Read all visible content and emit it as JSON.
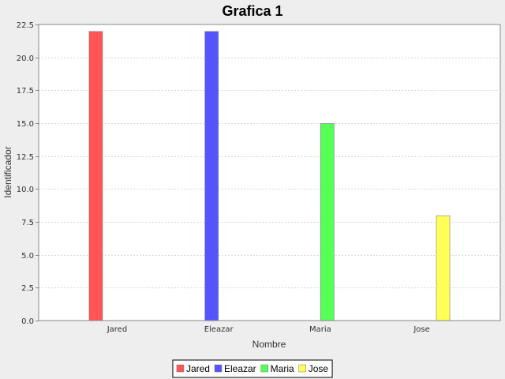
{
  "chart_data": {
    "type": "bar",
    "title": "Grafica 1",
    "xlabel": "Nombre",
    "ylabel": "Identificador",
    "categories": [
      "Jared",
      "Eleazar",
      "Maria",
      "Jose"
    ],
    "series": [
      {
        "name": "Jared",
        "values": [
          22,
          null,
          null,
          null
        ],
        "color": "#ff5555"
      },
      {
        "name": "Eleazar",
        "values": [
          null,
          22,
          null,
          null
        ],
        "color": "#5555ff"
      },
      {
        "name": "Maria",
        "values": [
          null,
          null,
          15,
          null
        ],
        "color": "#55ff55"
      },
      {
        "name": "Jose",
        "values": [
          null,
          null,
          null,
          8
        ],
        "color": "#ffff55"
      }
    ],
    "ylim": [
      0,
      22.5
    ],
    "yticks": [
      "0.0",
      "2.5",
      "5.0",
      "7.5",
      "10.0",
      "12.5",
      "15.0",
      "17.5",
      "20.0",
      "22.5"
    ],
    "grid": true,
    "legend_position": "bottom-center"
  }
}
